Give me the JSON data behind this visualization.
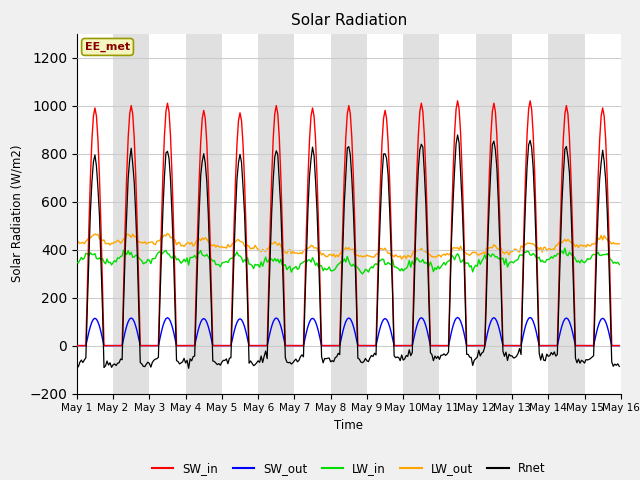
{
  "title": "Solar Radiation",
  "ylabel": "Solar Radiation (W/m2)",
  "xlabel": "Time",
  "ylim": [
    -200,
    1300
  ],
  "yticks": [
    -200,
    0,
    200,
    400,
    600,
    800,
    1000,
    1200
  ],
  "n_days": 15,
  "annotation_text": "EE_met",
  "fig_bg_color": "#f0f0f0",
  "plot_bg_color": "#e8e8e8",
  "band_color_light": "#ffffff",
  "band_color_dark": "#e0e0e0",
  "SW_in_color": "#ff0000",
  "SW_out_color": "#0000ff",
  "LW_in_color": "#00dd00",
  "LW_out_color": "#ffa500",
  "Rnet_color": "#000000",
  "legend_labels": [
    "SW_in",
    "SW_out",
    "LW_in",
    "LW_out",
    "Rnet"
  ],
  "x_tick_labels": [
    "May 1",
    "May 2",
    "May 3",
    "May 4",
    "May 5",
    "May 6",
    "May 7",
    "May 8",
    "May 9",
    "May 10",
    "May 11",
    "May 12",
    "May 13",
    "May 14",
    "May 15",
    "May 16"
  ]
}
